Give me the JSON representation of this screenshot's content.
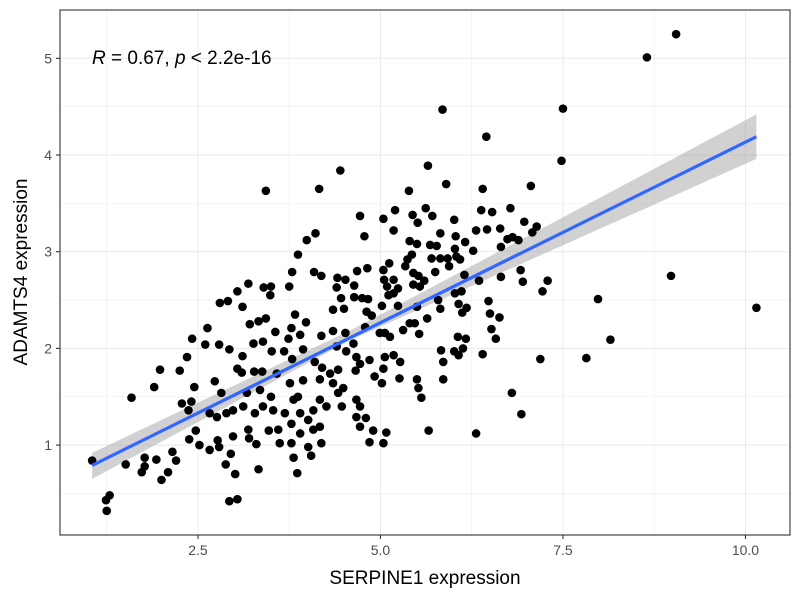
{
  "chart_data": {
    "type": "scatter",
    "title": "",
    "xlabel": "SERPINE1 expression",
    "ylabel": "ADAMTS4 expression",
    "xlim": [
      0.61,
      10.61
    ],
    "ylim": [
      0.07,
      5.5
    ],
    "x_ticks": [
      2.5,
      5.0,
      7.5,
      10.0
    ],
    "x_tick_labels": [
      "2.5",
      "5.0",
      "7.5",
      "10.0"
    ],
    "y_ticks": [
      1,
      2,
      3,
      4,
      5
    ],
    "y_tick_labels": [
      "1",
      "2",
      "3",
      "4",
      "5"
    ],
    "grid": true,
    "annotation": {
      "r_label": "R",
      "r_text": " = 0.67, ",
      "p_label": "p",
      "p_text": " < 2.2e-16"
    },
    "colors": {
      "points": "#000000",
      "fit_line": "#3366FF",
      "ci_band": "#999999",
      "grid": "#ebebeb"
    },
    "fit": {
      "method": "linear",
      "x": [
        1.05,
        10.15
      ],
      "y": [
        0.79,
        4.19
      ],
      "ci_x": [
        1.05,
        4.6,
        10.15
      ],
      "ci_lower": [
        0.65,
        2.09,
        3.96
      ],
      "ci_upper": [
        0.92,
        2.19,
        4.42
      ]
    },
    "points": [
      [
        3.43,
        3.63
      ],
      [
        4.16,
        3.65
      ],
      [
        5.39,
        3.63
      ],
      [
        5.9,
        3.7
      ],
      [
        6.4,
        3.65
      ],
      [
        7.06,
        3.68
      ],
      [
        4.72,
        3.37
      ],
      [
        5.04,
        3.34
      ],
      [
        5.2,
        3.43
      ],
      [
        5.44,
        3.38
      ],
      [
        5.51,
        3.3
      ],
      [
        5.62,
        3.45
      ],
      [
        5.71,
        3.37
      ],
      [
        6.01,
        3.33
      ],
      [
        6.38,
        3.43
      ],
      [
        6.53,
        3.41
      ],
      [
        6.78,
        3.45
      ],
      [
        6.97,
        3.31
      ],
      [
        7.14,
        3.26
      ],
      [
        7.08,
        3.2
      ],
      [
        6.31,
        3.22
      ],
      [
        6.46,
        3.23
      ],
      [
        6.64,
        3.24
      ],
      [
        4.11,
        3.19
      ],
      [
        3.99,
        3.12
      ],
      [
        4.78,
        3.16
      ],
      [
        5.18,
        3.22
      ],
      [
        5.82,
        3.19
      ],
      [
        6.03,
        3.16
      ],
      [
        6.16,
        3.1
      ],
      [
        5.4,
        3.11
      ],
      [
        5.5,
        3.08
      ],
      [
        5.68,
        3.07
      ],
      [
        5.77,
        3.06
      ],
      [
        6.02,
        3.03
      ],
      [
        6.27,
        3.01
      ],
      [
        6.74,
        3.13
      ],
      [
        6.81,
        3.15
      ],
      [
        6.89,
        3.12
      ],
      [
        6.65,
        3.05
      ],
      [
        3.87,
        2.97
      ],
      [
        5.43,
        2.97
      ],
      [
        5.37,
        2.92
      ],
      [
        5.7,
        2.93
      ],
      [
        5.82,
        2.93
      ],
      [
        5.92,
        2.93
      ],
      [
        6.04,
        2.95
      ],
      [
        6.09,
        2.92
      ],
      [
        5.94,
        2.85
      ],
      [
        5.75,
        2.79
      ],
      [
        5.04,
        2.81
      ],
      [
        5.12,
        2.88
      ],
      [
        5.34,
        2.85
      ],
      [
        4.82,
        2.83
      ],
      [
        4.68,
        2.8
      ],
      [
        3.79,
        2.79
      ],
      [
        4.09,
        2.79
      ],
      [
        4.19,
        2.75
      ],
      [
        4.41,
        2.73
      ],
      [
        4.52,
        2.71
      ],
      [
        4.4,
        2.63
      ],
      [
        4.64,
        2.65
      ],
      [
        5.05,
        2.71
      ],
      [
        5.18,
        2.71
      ],
      [
        5.45,
        2.78
      ],
      [
        5.52,
        2.75
      ],
      [
        5.45,
        2.66
      ],
      [
        5.6,
        2.7
      ],
      [
        5.54,
        2.64
      ],
      [
        6.15,
        2.76
      ],
      [
        6.35,
        2.7
      ],
      [
        6.65,
        2.74
      ],
      [
        6.92,
        2.81
      ],
      [
        6.95,
        2.69
      ],
      [
        7.29,
        2.7
      ],
      [
        7.22,
        2.59
      ],
      [
        3.19,
        2.67
      ],
      [
        3.04,
        2.59
      ],
      [
        3.4,
        2.63
      ],
      [
        3.5,
        2.64
      ],
      [
        3.49,
        2.55
      ],
      [
        3.75,
        2.64
      ],
      [
        5.09,
        2.64
      ],
      [
        5.24,
        2.62
      ],
      [
        5.11,
        2.55
      ],
      [
        5.18,
        2.57
      ],
      [
        4.46,
        2.52
      ],
      [
        4.64,
        2.53
      ],
      [
        4.75,
        2.52
      ],
      [
        4.83,
        2.51
      ],
      [
        5.02,
        2.44
      ],
      [
        5.24,
        2.44
      ],
      [
        5.5,
        2.43
      ],
      [
        5.79,
        2.5
      ],
      [
        5.82,
        2.41
      ],
      [
        6.02,
        2.57
      ],
      [
        6.11,
        2.59
      ],
      [
        6.48,
        2.49
      ],
      [
        6.07,
        2.46
      ],
      [
        6.18,
        2.42
      ],
      [
        6.12,
        2.37
      ],
      [
        6.5,
        2.36
      ],
      [
        6.63,
        2.32
      ],
      [
        5.64,
        2.31
      ],
      [
        2.8,
        2.47
      ],
      [
        2.91,
        2.49
      ],
      [
        3.11,
        2.43
      ],
      [
        4.35,
        2.4
      ],
      [
        4.5,
        2.41
      ],
      [
        4.81,
        2.38
      ],
      [
        4.88,
        2.34
      ],
      [
        3.83,
        2.35
      ],
      [
        3.98,
        2.27
      ],
      [
        3.33,
        2.28
      ],
      [
        3.43,
        2.31
      ],
      [
        3.21,
        2.25
      ],
      [
        2.63,
        2.21
      ],
      [
        2.42,
        2.1
      ],
      [
        2.6,
        2.04
      ],
      [
        2.79,
        2.04
      ],
      [
        2.93,
        1.99
      ],
      [
        3.56,
        2.17
      ],
      [
        3.78,
        2.21
      ],
      [
        3.9,
        2.14
      ],
      [
        3.74,
        2.1
      ],
      [
        3.39,
        2.07
      ],
      [
        3.26,
        2.05
      ],
      [
        3.51,
        1.97
      ],
      [
        3.68,
        1.97
      ],
      [
        3.94,
        1.99
      ],
      [
        4.19,
        2.13
      ],
      [
        4.35,
        2.18
      ],
      [
        4.52,
        2.16
      ],
      [
        4.4,
        2.02
      ],
      [
        4.63,
        2.05
      ],
      [
        4.79,
        2.22
      ],
      [
        4.99,
        2.16
      ],
      [
        5.06,
        2.16
      ],
      [
        5.13,
        2.12
      ],
      [
        5.31,
        2.19
      ],
      [
        5.4,
        2.26
      ],
      [
        5.47,
        2.26
      ],
      [
        5.53,
        2.15
      ],
      [
        6.52,
        2.2
      ],
      [
        6.58,
        2.1
      ],
      [
        6.06,
        2.12
      ],
      [
        6.17,
        2.1
      ],
      [
        5.83,
        1.98
      ],
      [
        6.01,
        1.97
      ],
      [
        6.07,
        1.93
      ],
      [
        6.13,
        2.0
      ],
      [
        6.4,
        1.94
      ],
      [
        7.19,
        1.89
      ],
      [
        3.11,
        1.92
      ],
      [
        3.04,
        1.79
      ],
      [
        3.1,
        1.75
      ],
      [
        3.27,
        1.76
      ],
      [
        3.38,
        1.76
      ],
      [
        3.79,
        1.89
      ],
      [
        4.1,
        1.86
      ],
      [
        4.2,
        1.8
      ],
      [
        4.31,
        1.74
      ],
      [
        4.42,
        1.78
      ],
      [
        4.53,
        1.97
      ],
      [
        4.67,
        1.91
      ],
      [
        4.72,
        1.84
      ],
      [
        4.66,
        1.77
      ],
      [
        4.85,
        1.88
      ],
      [
        5.06,
        1.91
      ],
      [
        5.18,
        1.93
      ],
      [
        5.27,
        1.86
      ],
      [
        5.04,
        1.79
      ],
      [
        4.92,
        1.71
      ],
      [
        5.02,
        1.64
      ],
      [
        5.26,
        1.69
      ],
      [
        5.5,
        1.68
      ],
      [
        5.86,
        1.86
      ],
      [
        5.86,
        1.68
      ],
      [
        2.35,
        1.91
      ],
      [
        2.25,
        1.77
      ],
      [
        1.98,
        1.78
      ],
      [
        1.9,
        1.6
      ],
      [
        1.59,
        1.49
      ],
      [
        2.45,
        1.6
      ],
      [
        2.73,
        1.66
      ],
      [
        2.82,
        1.54
      ],
      [
        3.17,
        1.54
      ],
      [
        3.35,
        1.57
      ],
      [
        3.58,
        1.74
      ],
      [
        3.76,
        1.64
      ],
      [
        3.94,
        1.67
      ],
      [
        4.17,
        1.68
      ],
      [
        4.35,
        1.64
      ],
      [
        4.49,
        1.59
      ],
      [
        4.42,
        1.54
      ],
      [
        4.67,
        1.47
      ],
      [
        4.72,
        1.4
      ],
      [
        2.28,
        1.43
      ],
      [
        2.41,
        1.45
      ],
      [
        2.37,
        1.36
      ],
      [
        2.66,
        1.33
      ],
      [
        2.76,
        1.29
      ],
      [
        2.89,
        1.33
      ],
      [
        2.98,
        1.36
      ],
      [
        3.12,
        1.4
      ],
      [
        3.28,
        1.33
      ],
      [
        3.39,
        1.4
      ],
      [
        3.5,
        1.5
      ],
      [
        3.53,
        1.36
      ],
      [
        3.81,
        1.47
      ],
      [
        3.87,
        1.5
      ],
      [
        3.69,
        1.33
      ],
      [
        3.9,
        1.33
      ],
      [
        4.08,
        1.36
      ],
      [
        4.17,
        1.47
      ],
      [
        4.26,
        1.4
      ],
      [
        4.47,
        1.4
      ],
      [
        5.52,
        1.59
      ],
      [
        5.56,
        1.49
      ],
      [
        6.8,
        1.54
      ],
      [
        6.93,
        1.32
      ],
      [
        4.67,
        1.29
      ],
      [
        4.8,
        1.28
      ],
      [
        4.72,
        1.19
      ],
      [
        4.9,
        1.15
      ],
      [
        5.08,
        1.13
      ],
      [
        4.85,
        1.03
      ],
      [
        5.04,
        1.02
      ],
      [
        5.66,
        1.15
      ],
      [
        6.31,
        1.12
      ],
      [
        2.47,
        1.15
      ],
      [
        2.38,
        1.06
      ],
      [
        2.52,
        1.0
      ],
      [
        2.66,
        0.95
      ],
      [
        2.79,
        0.98
      ],
      [
        2.77,
        1.05
      ],
      [
        2.98,
        1.09
      ],
      [
        3.19,
        1.16
      ],
      [
        3.2,
        1.07
      ],
      [
        3.3,
        1.01
      ],
      [
        3.47,
        1.15
      ],
      [
        3.6,
        1.16
      ],
      [
        3.62,
        1.02
      ],
      [
        3.78,
        1.22
      ],
      [
        3.9,
        1.12
      ],
      [
        4.01,
        1.26
      ],
      [
        4.08,
        1.16
      ],
      [
        4.17,
        1.19
      ],
      [
        4.19,
        1.02
      ],
      [
        4.01,
        0.98
      ],
      [
        4.05,
        0.89
      ],
      [
        3.81,
        0.87
      ],
      [
        3.86,
        0.71
      ],
      [
        3.78,
        1.02
      ],
      [
        3.33,
        0.75
      ],
      [
        3.01,
        0.7
      ],
      [
        2.88,
        0.8
      ],
      [
        2.95,
        0.91
      ],
      [
        2.15,
        0.93
      ],
      [
        2.2,
        0.84
      ],
      [
        1.93,
        0.85
      ],
      [
        1.77,
        0.87
      ],
      [
        1.77,
        0.78
      ],
      [
        1.73,
        0.72
      ],
      [
        2.09,
        0.72
      ],
      [
        2.0,
        0.64
      ],
      [
        1.51,
        0.8
      ],
      [
        1.05,
        0.84
      ],
      [
        1.29,
        0.48
      ],
      [
        1.24,
        0.43
      ],
      [
        1.25,
        0.32
      ],
      [
        2.93,
        0.42
      ],
      [
        3.04,
        0.44
      ],
      [
        5.85,
        4.47
      ],
      [
        6.45,
        4.19
      ],
      [
        5.65,
        3.89
      ],
      [
        4.45,
        3.84
      ],
      [
        7.5,
        4.48
      ],
      [
        7.48,
        3.94
      ],
      [
        8.65,
        5.01
      ],
      [
        9.05,
        5.25
      ],
      [
        7.98,
        2.51
      ],
      [
        8.15,
        2.09
      ],
      [
        7.82,
        1.9
      ],
      [
        8.98,
        2.75
      ],
      [
        10.15,
        2.42
      ]
    ]
  }
}
